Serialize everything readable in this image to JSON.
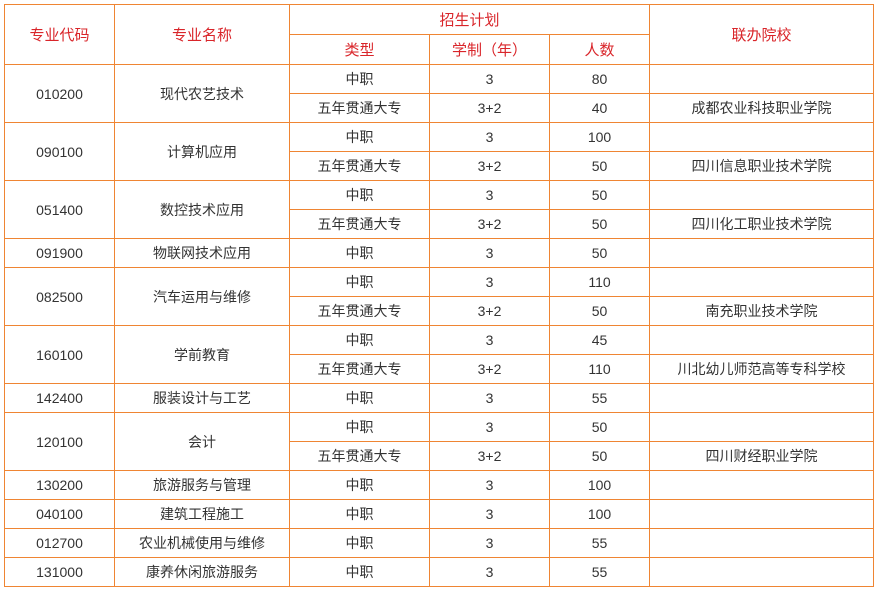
{
  "colors": {
    "border": "#ef8533",
    "header_text": "#d9252a",
    "body_text": "#333333",
    "background": "#ffffff"
  },
  "typography": {
    "header_fontsize": 15,
    "body_fontsize": 14,
    "font_family": "Microsoft YaHei"
  },
  "headers": {
    "code": "专业代码",
    "name": "专业名称",
    "plan_group": "招生计划",
    "type": "类型",
    "years": "学制（年）",
    "count": "人数",
    "partner": "联办院校"
  },
  "column_widths": {
    "code": 110,
    "name": 175,
    "type": 140,
    "years": 120,
    "count": 100,
    "partner": 224
  },
  "rows": [
    {
      "code": "010200",
      "name": "现代农艺技术",
      "span": 2,
      "sub": [
        {
          "type": "中职",
          "years": "3",
          "count": "80",
          "partner": ""
        },
        {
          "type": "五年贯通大专",
          "years": "3+2",
          "count": "40",
          "partner": "成都农业科技职业学院"
        }
      ]
    },
    {
      "code": "090100",
      "name": "计算机应用",
      "span": 2,
      "sub": [
        {
          "type": "中职",
          "years": "3",
          "count": "100",
          "partner": ""
        },
        {
          "type": "五年贯通大专",
          "years": "3+2",
          "count": "50",
          "partner": "四川信息职业技术学院"
        }
      ]
    },
    {
      "code": "051400",
      "name": "数控技术应用",
      "span": 2,
      "sub": [
        {
          "type": "中职",
          "years": "3",
          "count": "50",
          "partner": ""
        },
        {
          "type": "五年贯通大专",
          "years": "3+2",
          "count": "50",
          "partner": "四川化工职业技术学院"
        }
      ]
    },
    {
      "code": "091900",
      "name": "物联网技术应用",
      "span": 1,
      "sub": [
        {
          "type": "中职",
          "years": "3",
          "count": "50",
          "partner": ""
        }
      ]
    },
    {
      "code": "082500",
      "name": "汽车运用与维修",
      "span": 2,
      "sub": [
        {
          "type": "中职",
          "years": "3",
          "count": "110",
          "partner": ""
        },
        {
          "type": "五年贯通大专",
          "years": "3+2",
          "count": "50",
          "partner": "南充职业技术学院"
        }
      ]
    },
    {
      "code": "160100",
      "name": "学前教育",
      "span": 2,
      "sub": [
        {
          "type": "中职",
          "years": "3",
          "count": "45",
          "partner": ""
        },
        {
          "type": "五年贯通大专",
          "years": "3+2",
          "count": "110",
          "partner": "川北幼儿师范高等专科学校"
        }
      ]
    },
    {
      "code": "142400",
      "name": "服装设计与工艺",
      "span": 1,
      "sub": [
        {
          "type": "中职",
          "years": "3",
          "count": "55",
          "partner": ""
        }
      ]
    },
    {
      "code": "120100",
      "name": "会计",
      "span": 2,
      "sub": [
        {
          "type": "中职",
          "years": "3",
          "count": "50",
          "partner": ""
        },
        {
          "type": "五年贯通大专",
          "years": "3+2",
          "count": "50",
          "partner": "四川财经职业学院"
        }
      ]
    },
    {
      "code": "130200",
      "name": "旅游服务与管理",
      "span": 1,
      "sub": [
        {
          "type": "中职",
          "years": "3",
          "count": "100",
          "partner": ""
        }
      ]
    },
    {
      "code": "040100",
      "name": "建筑工程施工",
      "span": 1,
      "sub": [
        {
          "type": "中职",
          "years": "3",
          "count": "100",
          "partner": ""
        }
      ]
    },
    {
      "code": "012700",
      "name": "农业机械使用与维修",
      "span": 1,
      "sub": [
        {
          "type": "中职",
          "years": "3",
          "count": "55",
          "partner": ""
        }
      ]
    },
    {
      "code": "131000",
      "name": "康养休闲旅游服务",
      "span": 1,
      "sub": [
        {
          "type": "中职",
          "years": "3",
          "count": "55",
          "partner": ""
        }
      ]
    }
  ]
}
